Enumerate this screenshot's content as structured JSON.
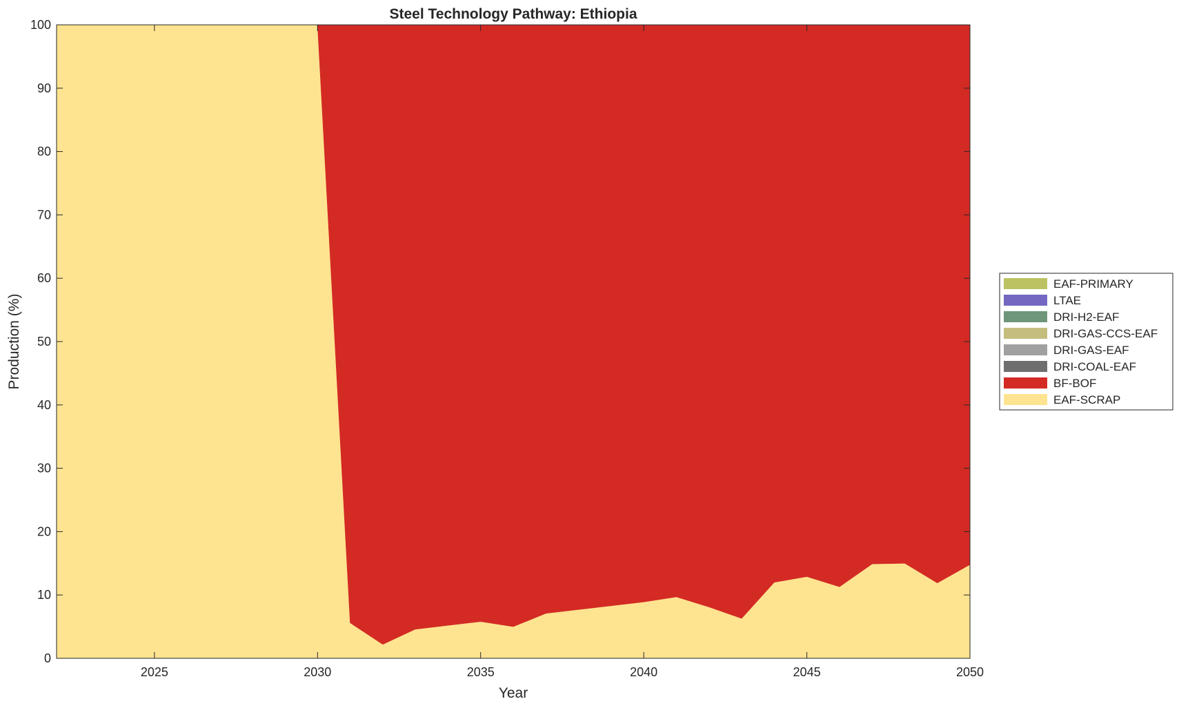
{
  "chart_data": {
    "type": "area",
    "stacked": true,
    "title": "Steel Technology Pathway: Ethiopia",
    "xlabel": "Year",
    "ylabel": "Production (%)",
    "xlim": [
      2022,
      2050
    ],
    "ylim": [
      0,
      100
    ],
    "xticks": [
      2025,
      2030,
      2035,
      2040,
      2045,
      2050
    ],
    "yticks": [
      0,
      10,
      20,
      30,
      40,
      50,
      60,
      70,
      80,
      90,
      100
    ],
    "grid": false,
    "legend_position": "right",
    "x": [
      2022,
      2023,
      2024,
      2025,
      2026,
      2027,
      2028,
      2029,
      2030,
      2031,
      2032,
      2033,
      2034,
      2035,
      2036,
      2037,
      2038,
      2039,
      2040,
      2041,
      2042,
      2043,
      2044,
      2045,
      2046,
      2047,
      2048,
      2049,
      2050
    ],
    "series": [
      {
        "name": "EAF-SCRAP",
        "color": "#fee391",
        "values": [
          100,
          100,
          100,
          100,
          100,
          100,
          100,
          100,
          100,
          5.6,
          2.2,
          4.6,
          5.2,
          5.8,
          5.0,
          7.1,
          7.7,
          8.3,
          8.9,
          9.7,
          8.1,
          6.3,
          12.0,
          12.9,
          11.3,
          14.9,
          15.0,
          11.9,
          14.8
        ]
      },
      {
        "name": "BF-BOF",
        "color": "#d32a24",
        "values": [
          0,
          0,
          0,
          0,
          0,
          0,
          0,
          0,
          0,
          94.4,
          97.8,
          95.4,
          94.8,
          94.2,
          95.0,
          92.9,
          92.3,
          91.7,
          91.1,
          90.3,
          91.9,
          93.7,
          88.0,
          87.1,
          88.7,
          85.1,
          85.0,
          88.1,
          85.2
        ]
      },
      {
        "name": "DRI-COAL-EAF",
        "color": "#6e6e6e",
        "values": [
          0,
          0,
          0,
          0,
          0,
          0,
          0,
          0,
          0,
          0,
          0,
          0,
          0,
          0,
          0,
          0,
          0,
          0,
          0,
          0,
          0,
          0,
          0,
          0,
          0,
          0,
          0,
          0,
          0
        ]
      },
      {
        "name": "DRI-GAS-EAF",
        "color": "#a0a0a0",
        "values": [
          0,
          0,
          0,
          0,
          0,
          0,
          0,
          0,
          0,
          0,
          0,
          0,
          0,
          0,
          0,
          0,
          0,
          0,
          0,
          0,
          0,
          0,
          0,
          0,
          0,
          0,
          0,
          0,
          0
        ]
      },
      {
        "name": "DRI-GAS-CCS-EAF",
        "color": "#c4bd7e",
        "values": [
          0,
          0,
          0,
          0,
          0,
          0,
          0,
          0,
          0,
          0,
          0,
          0,
          0,
          0,
          0,
          0,
          0,
          0,
          0,
          0,
          0,
          0,
          0,
          0,
          0,
          0,
          0,
          0,
          0
        ]
      },
      {
        "name": "DRI-H2-EAF",
        "color": "#6e967a",
        "values": [
          0,
          0,
          0,
          0,
          0,
          0,
          0,
          0,
          0,
          0,
          0,
          0,
          0,
          0,
          0,
          0,
          0,
          0,
          0,
          0,
          0,
          0,
          0,
          0,
          0,
          0,
          0,
          0,
          0
        ]
      },
      {
        "name": "LTAE",
        "color": "#7367c1",
        "values": [
          0,
          0,
          0,
          0,
          0,
          0,
          0,
          0,
          0,
          0,
          0,
          0,
          0,
          0,
          0,
          0,
          0,
          0,
          0,
          0,
          0,
          0,
          0,
          0,
          0,
          0,
          0,
          0,
          0
        ]
      },
      {
        "name": "EAF-PRIMARY",
        "color": "#bcc262",
        "values": [
          0,
          0,
          0,
          0,
          0,
          0,
          0,
          0,
          0,
          0,
          0,
          0,
          0,
          0,
          0,
          0,
          0,
          0,
          0,
          0,
          0,
          0,
          0,
          0,
          0,
          0,
          0,
          0,
          0
        ]
      }
    ],
    "legend_order": [
      "EAF-PRIMARY",
      "LTAE",
      "DRI-H2-EAF",
      "DRI-GAS-CCS-EAF",
      "DRI-GAS-EAF",
      "DRI-COAL-EAF",
      "BF-BOF",
      "EAF-SCRAP"
    ]
  }
}
